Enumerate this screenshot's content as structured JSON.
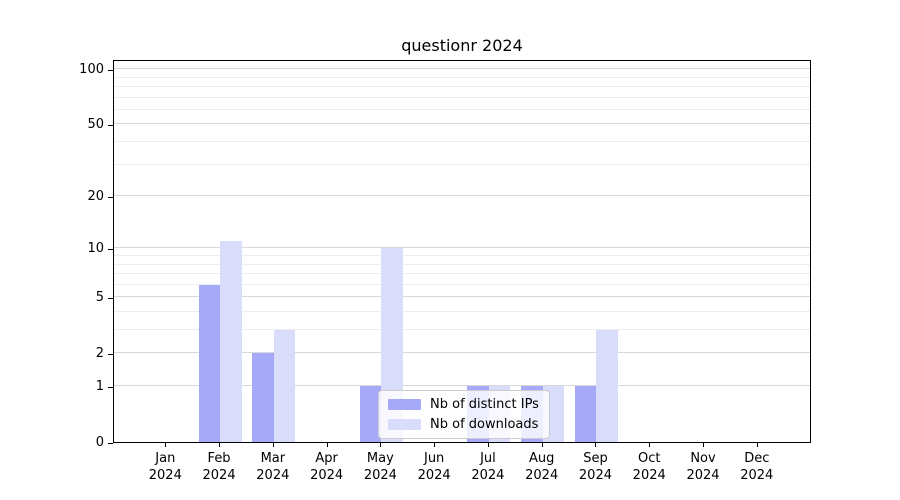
{
  "title": "questionr 2024",
  "chart_data": {
    "type": "bar",
    "title": "questionr 2024",
    "categories": [
      "Jan 2024",
      "Feb 2024",
      "Mar 2024",
      "Apr 2024",
      "May 2024",
      "Jun 2024",
      "Jul 2024",
      "Aug 2024",
      "Sep 2024",
      "Oct 2024",
      "Nov 2024",
      "Dec 2024"
    ],
    "series": [
      {
        "name": "Nb of distinct IPs",
        "color": "#a6a9f8",
        "values": [
          0,
          6,
          2,
          0,
          1,
          0,
          1,
          1,
          1,
          0,
          0,
          0
        ]
      },
      {
        "name": "Nb of downloads",
        "color": "#d9dcfb",
        "values": [
          0,
          11,
          3,
          0,
          10,
          0,
          1,
          1,
          3,
          0,
          0,
          0
        ]
      }
    ],
    "xlabel": "",
    "ylabel": "",
    "y_scale": "log-like: position proportional to log10(value+1)",
    "y_major_ticks": [
      0,
      1,
      2,
      5,
      10,
      20,
      50,
      100
    ],
    "y_minor_gridlines": [
      3,
      4,
      6,
      7,
      8,
      9,
      30,
      40,
      60,
      70,
      80,
      90
    ],
    "ylim": [
      0,
      113
    ],
    "grid": "horizontal gridlines on",
    "legend_position": "lower center inside plot",
    "colors": {
      "series_ips": "#a6a9f8",
      "series_downloads": "#d9dcfb",
      "grid_major": "#d8d8d8",
      "grid_minor": "#ededed",
      "axis": "#000000",
      "legend_border": "#cccccc"
    }
  }
}
